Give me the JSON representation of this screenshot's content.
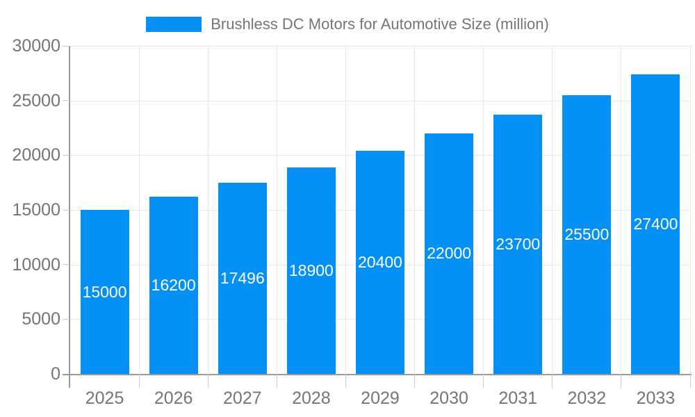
{
  "legend": {
    "label": "Brushless DC Motors for Automotive Size (million)"
  },
  "chart_data": {
    "type": "bar",
    "title": "Brushless DC Motors for Automotive Size (million)",
    "series_name": "Brushless DC Motors for Automotive Size (million)",
    "categories": [
      "2025",
      "2026",
      "2027",
      "2028",
      "2029",
      "2030",
      "2031",
      "2032",
      "2033"
    ],
    "values": [
      15000,
      16200,
      17496,
      18900,
      20400,
      22000,
      23700,
      25500,
      27400
    ],
    "xlabel": "",
    "ylabel": "",
    "ylim": [
      0,
      30000
    ],
    "yticks": [
      0,
      5000,
      10000,
      15000,
      20000,
      25000,
      30000
    ],
    "grid": true,
    "legend_position": "top-center",
    "bar_color": "#0590f5",
    "value_label_color": "#ffffff",
    "axis_text_color": "#757575",
    "axis_line_color": "#999999",
    "tick_color": "#cccccc",
    "grid_color": "#e6e6e6",
    "background_color": "#ffffff"
  }
}
